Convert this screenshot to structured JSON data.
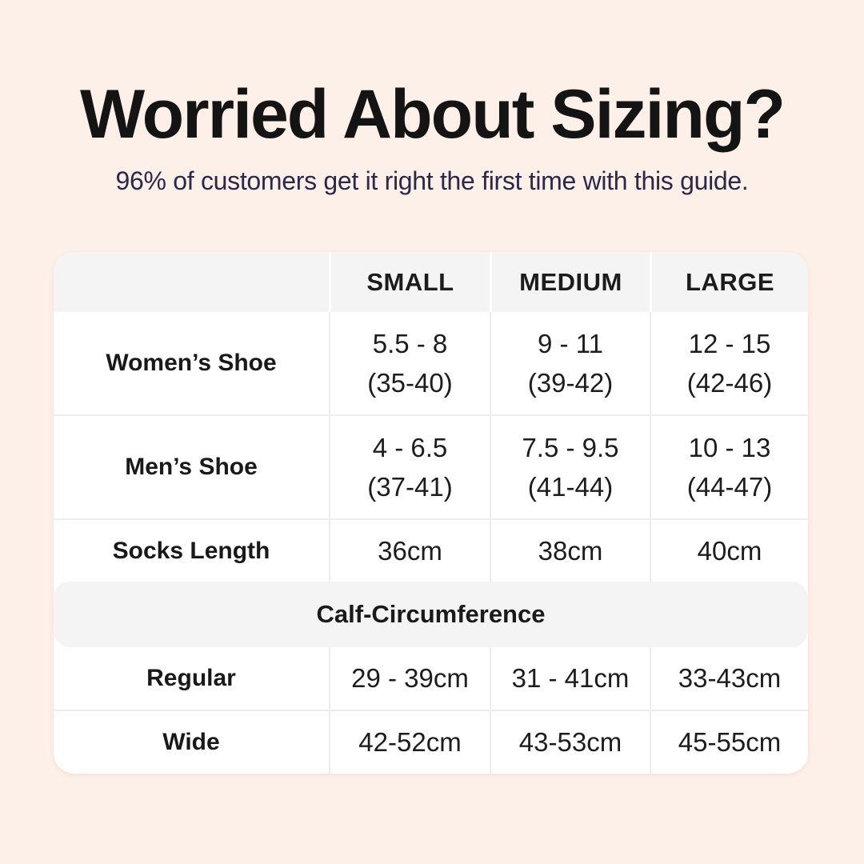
{
  "header": {
    "title": "Worried About Sizing?",
    "subtitle": "96% of customers get it right the first time with this guide."
  },
  "colors": {
    "background": "#fdf0e8",
    "table_background": "#ffffff",
    "header_band_background": "#f4f4f4",
    "grid_line": "#ededed",
    "title_text": "#141414",
    "subtitle_text": "#2b2849",
    "table_text": "#1d1d1d"
  },
  "table": {
    "columns": [
      "",
      "SMALL",
      "MEDIUM",
      "LARGE"
    ],
    "shoe_rows": [
      {
        "label": "Women’s Shoe",
        "cells": [
          {
            "l1": "5.5 - 8",
            "l2": "(35-40)"
          },
          {
            "l1": "9 - 11",
            "l2": "(39-42)"
          },
          {
            "l1": "12 - 15",
            "l2": "(42-46)"
          }
        ]
      },
      {
        "label": "Men’s Shoe",
        "cells": [
          {
            "l1": "4 - 6.5",
            "l2": "(37-41)"
          },
          {
            "l1": "7.5 - 9.5",
            "l2": "(41-44)"
          },
          {
            "l1": "10 - 13",
            "l2": "(44-47)"
          }
        ]
      }
    ],
    "socks_row": {
      "label": "Socks Length",
      "cells": [
        "36cm",
        "38cm",
        "40cm"
      ]
    },
    "section_label": "Calf-Circumference",
    "calf_rows": [
      {
        "label": "Regular",
        "cells": [
          "29 - 39cm",
          "31 - 41cm",
          "33-43cm"
        ]
      },
      {
        "label": "Wide",
        "cells": [
          "42-52cm",
          "43-53cm",
          "45-55cm"
        ]
      }
    ]
  },
  "chart_data": {
    "type": "table",
    "title": "Worried About Sizing?",
    "subtitle": "96% of customers get it right the first time with this guide.",
    "columns": [
      "",
      "SMALL",
      "MEDIUM",
      "LARGE"
    ],
    "rows": [
      {
        "label": "Women’s Shoe",
        "values": [
          "5.5 - 8 (35-40)",
          "9 - 11 (39-42)",
          "12 - 15 (42-46)"
        ]
      },
      {
        "label": "Men’s Shoe",
        "values": [
          "4 - 6.5 (37-41)",
          "7.5 - 9.5 (41-44)",
          "10 - 13 (44-47)"
        ]
      },
      {
        "label": "Socks Length",
        "values": [
          "36cm",
          "38cm",
          "40cm"
        ]
      },
      {
        "label": "Calf-Circumference",
        "section_header": true,
        "values": [
          "",
          "",
          ""
        ]
      },
      {
        "label": "Regular",
        "values": [
          "29 - 39cm",
          "31 - 41cm",
          "33-43cm"
        ]
      },
      {
        "label": "Wide",
        "values": [
          "42-52cm",
          "43-53cm",
          "45-55cm"
        ]
      }
    ]
  }
}
